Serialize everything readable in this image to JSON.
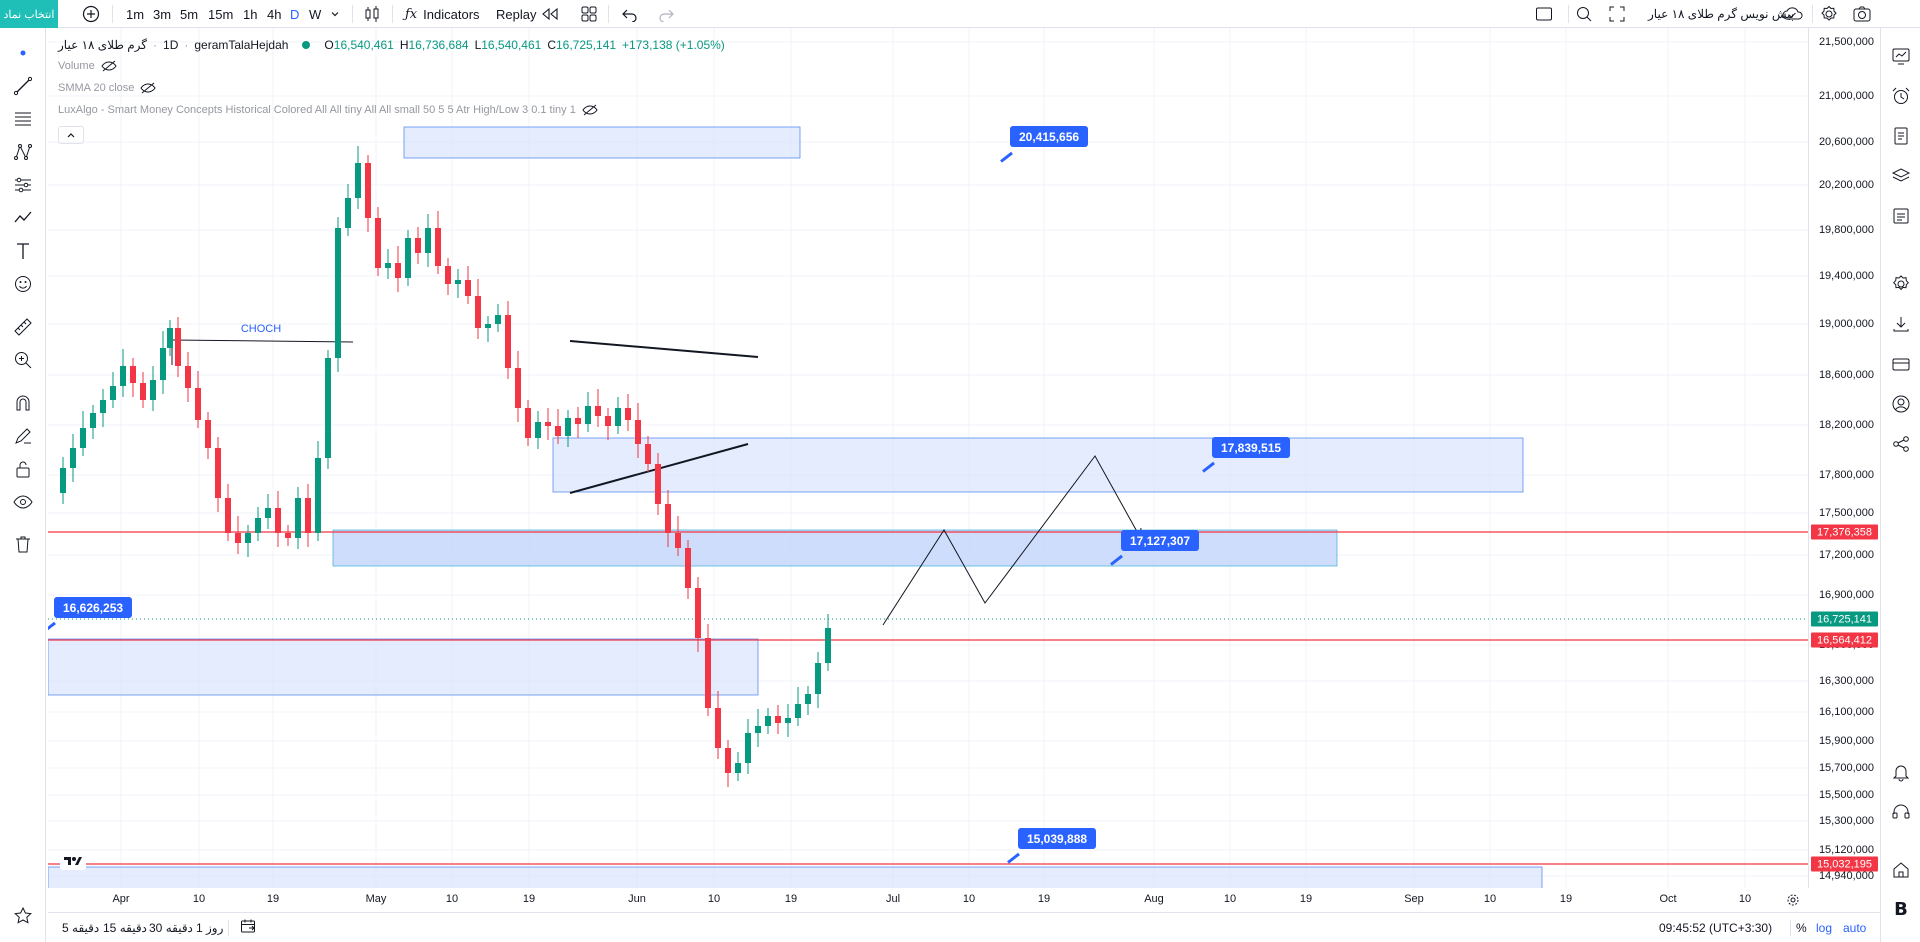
{
  "toolbar": {
    "symbol_button": "انتخاب نماد",
    "intervals": [
      "1m",
      "3m",
      "5m",
      "15m",
      "1h",
      "4h",
      "D",
      "W"
    ],
    "indicators_label": "Indicators",
    "replay_label": "Replay",
    "layout_name": "پیش نویس گرم طلای ۱۸ عیار"
  },
  "legend": {
    "symbol": "گرم طلای ۱۸ عیار",
    "interval": "1D",
    "source": "geramTalaHejdah",
    "open_label": "O",
    "open": "16,540,461",
    "high_label": "H",
    "high": "16,736,684",
    "low_label": "L",
    "low": "16,540,461",
    "close_label": "C",
    "close": "16,725,141",
    "change": "+173,138 (+1.05%)",
    "volume": "Volume",
    "smma": "SMMA 20 close",
    "luxalgo": "LuxAlgo - Smart Money Concepts Historical Colored All All tiny All All small 50 5 5 Atr High/Low 3 0.1 tiny 1"
  },
  "annotations": {
    "choch": "CHOCH",
    "badges": [
      "20,415,656",
      "17,839,515",
      "17,127,307",
      "16,626,253",
      "15,039,888"
    ]
  },
  "price_axis": {
    "labels": [
      "21,500,000",
      "21,000,000",
      "20,600,000",
      "20,200,000",
      "19,800,000",
      "19,400,000",
      "19,000,000",
      "18,600,000",
      "18,200,000",
      "17,800,000",
      "17,500,000",
      "17,200,000",
      "16,900,000",
      "16,500,000",
      "16,300,000",
      "16,100,000",
      "15,900,000",
      "15,700,000",
      "15,500,000",
      "15,300,000",
      "15,120,000",
      "14,940,000"
    ],
    "tags": [
      {
        "text": "17,376,358",
        "color": "#f23645"
      },
      {
        "text": "16,725,141",
        "color": "#089981"
      },
      {
        "text": "16,564,412",
        "color": "#f23645"
      },
      {
        "text": "15,032,195",
        "color": "#f23645"
      }
    ]
  },
  "time_axis": [
    "Apr",
    "10",
    "19",
    "May",
    "10",
    "19",
    "Jun",
    "10",
    "19",
    "Jul",
    "10",
    "19",
    "Aug",
    "10",
    "19",
    "Sep",
    "10",
    "19",
    "Oct",
    "10"
  ],
  "bottom": {
    "ranges": [
      "5 دقیقه",
      "15 دقیقه",
      "30 دقیقه",
      "1 روز"
    ],
    "clock": "09:45:52 (UTC+3:30)",
    "percent": "%",
    "log": "log",
    "auto": "auto"
  },
  "colors": {
    "up": "#089981",
    "down": "#f23645",
    "accent": "#2962ff",
    "zone": "#dbe6fd"
  }
}
